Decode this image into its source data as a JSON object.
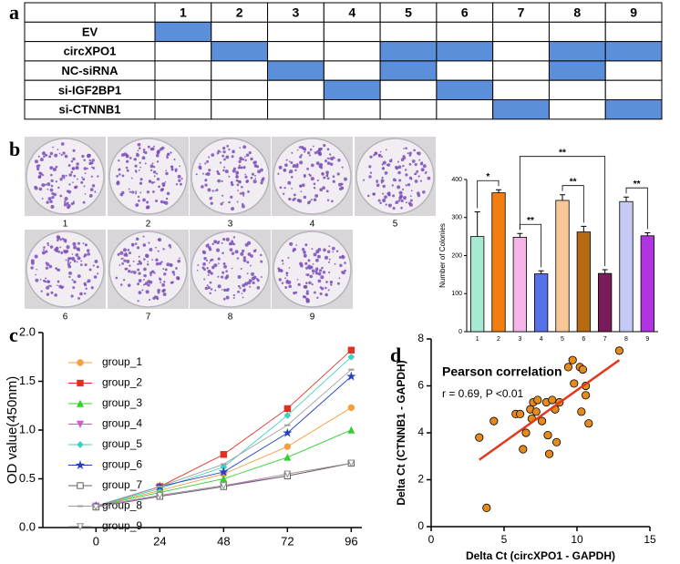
{
  "panel_labels": [
    "a",
    "b",
    "c",
    "d"
  ],
  "table": {
    "header": [
      "1",
      "2",
      "3",
      "4",
      "5",
      "6",
      "7",
      "8",
      "9"
    ],
    "rows": [
      {
        "label": "EV",
        "filled": [
          true,
          false,
          false,
          false,
          false,
          false,
          false,
          false,
          false
        ]
      },
      {
        "label": "circXPO1",
        "filled": [
          false,
          true,
          false,
          false,
          true,
          true,
          false,
          true,
          true
        ]
      },
      {
        "label": "NC-siRNA",
        "filled": [
          false,
          false,
          true,
          false,
          true,
          false,
          false,
          true,
          false
        ]
      },
      {
        "label": "si-IGF2BP1",
        "filled": [
          false,
          false,
          false,
          true,
          false,
          true,
          false,
          false,
          false
        ]
      },
      {
        "label": "si-CTNNB1",
        "filled": [
          false,
          false,
          false,
          false,
          false,
          false,
          true,
          false,
          true
        ]
      }
    ],
    "fill_color": "#5b8fd9"
  },
  "colony_plates": {
    "labels": [
      "1",
      "2",
      "3",
      "4",
      "5",
      "6",
      "7",
      "8",
      "9"
    ]
  },
  "chart_data": [
    {
      "type": "bar",
      "y_label": "Number of Colonies",
      "categories": [
        "1",
        "2",
        "3",
        "4",
        "5",
        "6",
        "7",
        "8",
        "9"
      ],
      "values": [
        250,
        365,
        248,
        152,
        345,
        262,
        153,
        342,
        252
      ],
      "errors": [
        65,
        8,
        10,
        8,
        15,
        15,
        10,
        12,
        8
      ],
      "colors": [
        "#a6ead2",
        "#f27e12",
        "#f6b4e6",
        "#5871e8",
        "#f9c797",
        "#b86a12",
        "#7a1b5b",
        "#c6c8f6",
        "#b233e2"
      ],
      "ylim": [
        0,
        400
      ],
      "yticks": [
        0,
        100,
        200,
        300,
        400
      ],
      "significance": [
        {
          "between": [
            "1",
            "2"
          ],
          "label": "*"
        },
        {
          "between": [
            "3",
            "4"
          ],
          "label": "**"
        },
        {
          "between": [
            "3",
            "7"
          ],
          "label": "**"
        },
        {
          "between": [
            "5",
            "6"
          ],
          "label": "**"
        },
        {
          "between": [
            "8",
            "9"
          ],
          "label": "**"
        }
      ]
    },
    {
      "type": "line",
      "y_label": "OD value(450nm)",
      "x": [
        0,
        24,
        48,
        72,
        96
      ],
      "xlim": [
        -20,
        100
      ],
      "xticks": [
        0,
        24,
        48,
        72,
        96
      ],
      "ylim": [
        0,
        2
      ],
      "yticks": [
        {
          "value": 0,
          "label": "0.0"
        },
        0.5,
        {
          "value": 1,
          "label": "1.0"
        },
        1.5,
        {
          "value": 2,
          "label": "2.0"
        }
      ],
      "series": [
        {
          "name": "group_1",
          "color": "#f5a040",
          "marker": "circle",
          "values": [
            0.22,
            0.38,
            0.55,
            0.83,
            1.23
          ]
        },
        {
          "name": "group_2",
          "color": "#e03020",
          "marker": "square",
          "values": [
            0.22,
            0.42,
            0.75,
            1.22,
            1.82
          ]
        },
        {
          "name": "group_3",
          "color": "#30d030",
          "marker": "triangle",
          "values": [
            0.22,
            0.36,
            0.5,
            0.72,
            1.0
          ]
        },
        {
          "name": "group_4",
          "color": "#e050e0",
          "marker": "triangle-down",
          "values": [
            0.22,
            0.33,
            0.43,
            0.53,
            0.66
          ]
        },
        {
          "name": "group_5",
          "color": "#40d0c0",
          "marker": "diamond",
          "values": [
            0.22,
            0.4,
            0.62,
            1.15,
            1.75
          ]
        },
        {
          "name": "group_6",
          "color": "#2040c0",
          "marker": "star",
          "values": [
            0.22,
            0.42,
            0.57,
            0.97,
            1.55
          ]
        },
        {
          "name": "group_7",
          "color": "#606060",
          "marker": "square-open",
          "values": [
            0.21,
            0.32,
            0.42,
            0.53,
            0.66
          ]
        },
        {
          "name": "group_8",
          "color": "#a0a0a0",
          "marker": "dash",
          "values": [
            0.22,
            0.42,
            0.65,
            1.05,
            1.62
          ]
        },
        {
          "name": "group_9",
          "color": "#909090",
          "marker": "triangle-down-open",
          "values": [
            0.21,
            0.33,
            0.43,
            0.55,
            0.66
          ]
        }
      ]
    },
    {
      "type": "scatter",
      "title": "Pearson correlation",
      "annotation": "r = 0.69, P <0.01",
      "x_label": "Delta Ct (circXPO1 - GAPDH)",
      "y_label": "Delta Ct (CTNNB1 - GAPDH)",
      "x": [
        3.3,
        3.8,
        4.3,
        5.8,
        6.1,
        6.3,
        6.5,
        6.8,
        6.9,
        7.0,
        7.2,
        7.3,
        7.6,
        7.9,
        8.0,
        8.1,
        8.3,
        8.5,
        8.6,
        8.8,
        9.4,
        9.7,
        9.8,
        10.2,
        10.3,
        10.4,
        10.6,
        10.6,
        10.8,
        12.9
      ],
      "y": [
        3.8,
        0.8,
        4.5,
        4.8,
        4.8,
        3.3,
        4.0,
        5.0,
        4.6,
        5.3,
        4.9,
        5.4,
        4.5,
        5.3,
        3.9,
        3.1,
        5.4,
        5.0,
        3.6,
        5.3,
        6.8,
        7.1,
        6.1,
        6.8,
        4.9,
        6.7,
        5.6,
        6.0,
        4.4,
        7.5
      ],
      "color": "#e58a1c",
      "fit_line": {
        "x": [
          3.3,
          12.9
        ],
        "y": [
          2.85,
          7.1
        ],
        "color": "#e03a1e"
      },
      "xlim": [
        0,
        15
      ],
      "xticks": [
        0,
        5,
        10,
        15
      ],
      "ylim": [
        0,
        8
      ],
      "yticks": [
        0,
        2,
        4,
        6,
        8
      ]
    }
  ]
}
